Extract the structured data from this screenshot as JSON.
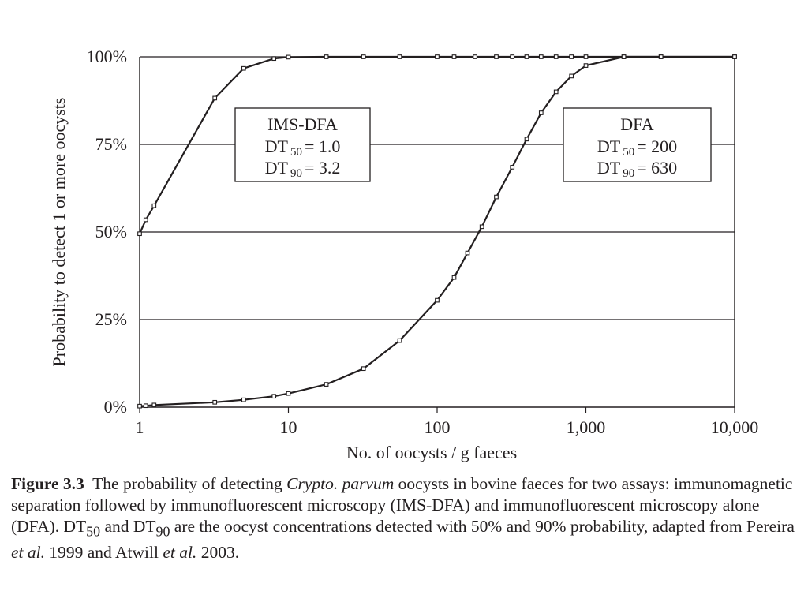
{
  "chart_data": {
    "type": "line",
    "title": "",
    "xlabel": "No. of oocysts / g faeces",
    "ylabel": "Probability to detect 1 or more oocysts",
    "x_scale": "log",
    "xlim": [
      1,
      10000
    ],
    "ylim": [
      0,
      100
    ],
    "x_ticks": [
      1,
      10,
      100,
      1000,
      10000
    ],
    "x_tick_labels": [
      "1",
      "10",
      "100",
      "1,000",
      "10,000"
    ],
    "y_ticks": [
      0,
      25,
      50,
      75,
      100
    ],
    "y_tick_labels": [
      "0%",
      "25%",
      "50%",
      "75%",
      "100%"
    ],
    "grid": "horizontal",
    "legend": "none",
    "line_color": "#231f20",
    "series": [
      {
        "x": [
          1,
          1.1,
          1.25,
          3.2,
          5,
          8,
          10,
          18,
          32,
          56,
          100,
          130,
          180,
          250,
          320,
          400,
          500,
          630,
          800,
          1000,
          1800,
          3200,
          10000
        ],
        "y": [
          49.5,
          53.5,
          57.5,
          88.2,
          96.7,
          99.5,
          99.9,
          100,
          100,
          100,
          100,
          100,
          100,
          100,
          100,
          100,
          100,
          100,
          100,
          100,
          100,
          100,
          100
        ]
      },
      {
        "x": [
          1,
          1.1,
          1.25,
          3.2,
          5,
          8,
          10,
          18,
          32,
          56,
          100,
          130,
          160,
          200,
          250,
          320,
          400,
          500,
          630,
          800,
          1000,
          1800,
          3200,
          10000
        ],
        "y": [
          0.3,
          0.4,
          0.6,
          1.4,
          2.1,
          3.1,
          3.9,
          6.5,
          11,
          19,
          30.5,
          37,
          44,
          51.5,
          60,
          68.5,
          76.5,
          84,
          90,
          94.5,
          97.5,
          100,
          100,
          100
        ]
      }
    ],
    "annotations": [
      {
        "lines": [
          "IMS-DFA",
          "DT",
          "50",
          "= 1.0",
          "DT",
          "90",
          "= 3.2"
        ]
      },
      {
        "lines": [
          "DFA",
          "DT",
          "50",
          "= 200",
          "DT",
          "90",
          "= 630"
        ]
      }
    ]
  },
  "caption": {
    "figure_label": "Figure 3.3",
    "text_1": "The probability of detecting ",
    "species": "Crypto. parvum",
    "text_2": " oocysts in bovine faeces for two assays: immunomagnetic separation followed by immunofluorescent microscopy (IMS-DFA) and immunofluorescent microscopy alone (DFA). DT",
    "sub_50": "50",
    "text_3": " and DT",
    "sub_90": "90",
    "text_4": " are the oocyst concentrations detected with 50% and 90% probability, adapted from Pereira ",
    "etal_1": "et al.",
    "text_5": " 1999 and Atwill ",
    "etal_2": "et al.",
    "text_6": " 2003."
  }
}
